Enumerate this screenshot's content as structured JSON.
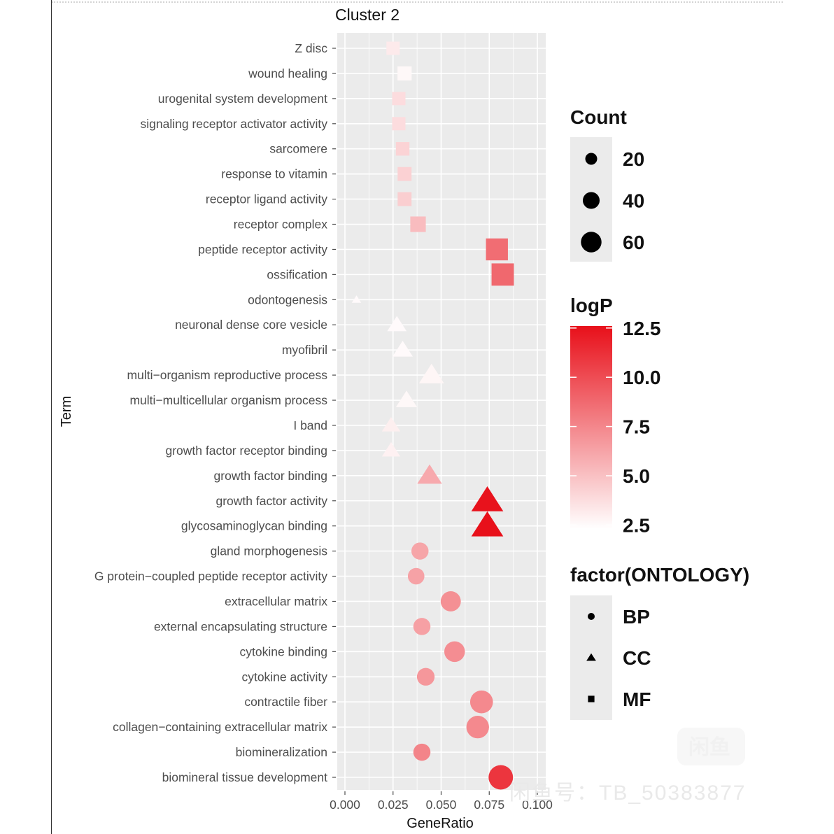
{
  "chart_data": {
    "type": "scatter",
    "title": "Cluster 2",
    "xlabel": "GeneRatio",
    "ylabel": "Term",
    "xlim": [
      0,
      0.1
    ],
    "xticks": [
      0,
      0.025,
      0.05,
      0.075,
      0.1
    ],
    "xtick_labels": [
      "0.000",
      "0.025",
      "0.050",
      "0.075",
      "0.100"
    ],
    "terms": [
      "Z disc",
      "wound healing",
      "urogenital system development",
      "signaling receptor activator activity",
      "sarcomere",
      "response to vitamin",
      "receptor ligand activity",
      "receptor complex",
      "peptide receptor activity",
      "ossification",
      "odontogenesis",
      "neuronal dense core vesicle",
      "myofibril",
      "multi−organism reproductive process",
      "multi−multicellular organism process",
      "I band",
      "growth factor receptor binding",
      "growth factor binding",
      "growth factor activity",
      "glycosaminoglycan binding",
      "gland morphogenesis",
      "G protein−coupled peptide receptor activity",
      "extracellular matrix",
      "external encapsulating structure",
      "cytokine binding",
      "cytokine activity",
      "contractile fiber",
      "collagen−containing extracellular matrix",
      "biomineralization",
      "biomineral tissue development"
    ],
    "points": [
      {
        "term": "Z disc",
        "gene_ratio": 0.025,
        "count": 22,
        "logP": 3.2,
        "ontology": "MF"
      },
      {
        "term": "wound healing",
        "gene_ratio": 0.031,
        "count": 25,
        "logP": 2.6,
        "ontology": "MF"
      },
      {
        "term": "urogenital system development",
        "gene_ratio": 0.028,
        "count": 22,
        "logP": 3.8,
        "ontology": "MF"
      },
      {
        "term": "signaling receptor activator activity",
        "gene_ratio": 0.028,
        "count": 22,
        "logP": 3.8,
        "ontology": "MF"
      },
      {
        "term": "sarcomere",
        "gene_ratio": 0.03,
        "count": 23,
        "logP": 4.2,
        "ontology": "MF"
      },
      {
        "term": "response to vitamin",
        "gene_ratio": 0.031,
        "count": 24,
        "logP": 4.3,
        "ontology": "MF"
      },
      {
        "term": "receptor ligand activity",
        "gene_ratio": 0.031,
        "count": 24,
        "logP": 4.4,
        "ontology": "MF"
      },
      {
        "term": "receptor complex",
        "gene_ratio": 0.038,
        "count": 30,
        "logP": 5.2,
        "ontology": "MF"
      },
      {
        "term": "peptide receptor activity",
        "gene_ratio": 0.079,
        "count": 60,
        "logP": 8.6,
        "ontology": "MF"
      },
      {
        "term": "ossification",
        "gene_ratio": 0.082,
        "count": 62,
        "logP": 8.8,
        "ontology": "MF"
      },
      {
        "term": "odontogenesis",
        "gene_ratio": 0.006,
        "count": 5,
        "logP": 2.5,
        "ontology": "CC"
      },
      {
        "term": "neuronal dense core vesicle",
        "gene_ratio": 0.027,
        "count": 21,
        "logP": 2.5,
        "ontology": "CC"
      },
      {
        "term": "myofibril",
        "gene_ratio": 0.03,
        "count": 23,
        "logP": 2.5,
        "ontology": "CC"
      },
      {
        "term": "multi−organism reproductive process",
        "gene_ratio": 0.045,
        "count": 35,
        "logP": 2.7,
        "ontology": "CC"
      },
      {
        "term": "multi−multicellular organism process",
        "gene_ratio": 0.032,
        "count": 25,
        "logP": 2.6,
        "ontology": "CC"
      },
      {
        "term": "I band",
        "gene_ratio": 0.024,
        "count": 19,
        "logP": 3.0,
        "ontology": "CC"
      },
      {
        "term": "growth factor receptor binding",
        "gene_ratio": 0.024,
        "count": 19,
        "logP": 2.9,
        "ontology": "CC"
      },
      {
        "term": "growth factor binding",
        "gene_ratio": 0.044,
        "count": 34,
        "logP": 6.0,
        "ontology": "CC"
      },
      {
        "term": "growth factor activity",
        "gene_ratio": 0.074,
        "count": 57,
        "logP": 12.5,
        "ontology": "CC"
      },
      {
        "term": "glycosaminoglycan binding",
        "gene_ratio": 0.074,
        "count": 57,
        "logP": 12.6,
        "ontology": "CC"
      },
      {
        "term": "gland morphogenesis",
        "gene_ratio": 0.039,
        "count": 31,
        "logP": 6.2,
        "ontology": "BP"
      },
      {
        "term": "G protein−coupled peptide receptor activity",
        "gene_ratio": 0.037,
        "count": 29,
        "logP": 6.3,
        "ontology": "BP"
      },
      {
        "term": "extracellular matrix",
        "gene_ratio": 0.055,
        "count": 43,
        "logP": 7.1,
        "ontology": "BP"
      },
      {
        "term": "external encapsulating structure",
        "gene_ratio": 0.04,
        "count": 31,
        "logP": 6.4,
        "ontology": "BP"
      },
      {
        "term": "cytokine binding",
        "gene_ratio": 0.057,
        "count": 45,
        "logP": 7.2,
        "ontology": "BP"
      },
      {
        "term": "cytokine activity",
        "gene_ratio": 0.042,
        "count": 33,
        "logP": 6.8,
        "ontology": "BP"
      },
      {
        "term": "contractile fiber",
        "gene_ratio": 0.071,
        "count": 55,
        "logP": 7.4,
        "ontology": "BP"
      },
      {
        "term": "collagen−containing extracellular matrix",
        "gene_ratio": 0.069,
        "count": 54,
        "logP": 7.4,
        "ontology": "BP"
      },
      {
        "term": "biomineralization",
        "gene_ratio": 0.04,
        "count": 31,
        "logP": 7.6,
        "ontology": "BP"
      },
      {
        "term": "biomineral tissue development",
        "gene_ratio": 0.081,
        "count": 63,
        "logP": 11.0,
        "ontology": "BP"
      }
    ],
    "legend": {
      "size_title": "Count",
      "size_breaks": [
        20,
        40,
        60
      ],
      "size_labels": [
        "20",
        "40",
        "60"
      ],
      "color_title": "logP",
      "color_breaks": [
        2.5,
        5.0,
        7.5,
        10.0,
        12.5
      ],
      "color_labels": [
        "2.5",
        "5.0",
        "7.5",
        "10.0",
        "12.5"
      ],
      "color_range": [
        2.3,
        12.6
      ],
      "color_low": "#ffffff",
      "color_high": "#e8101a",
      "shape_title": "factor(ONTOLOGY)",
      "shape_labels": [
        "BP",
        "CC",
        "MF"
      ],
      "shape_names": [
        "circle",
        "triangle",
        "square"
      ]
    },
    "panel_color": "#ebebeb",
    "grid_color": "#ffffff"
  },
  "watermark": {
    "text": "闲鱼号：TB_50383877",
    "logo": "闲鱼"
  }
}
